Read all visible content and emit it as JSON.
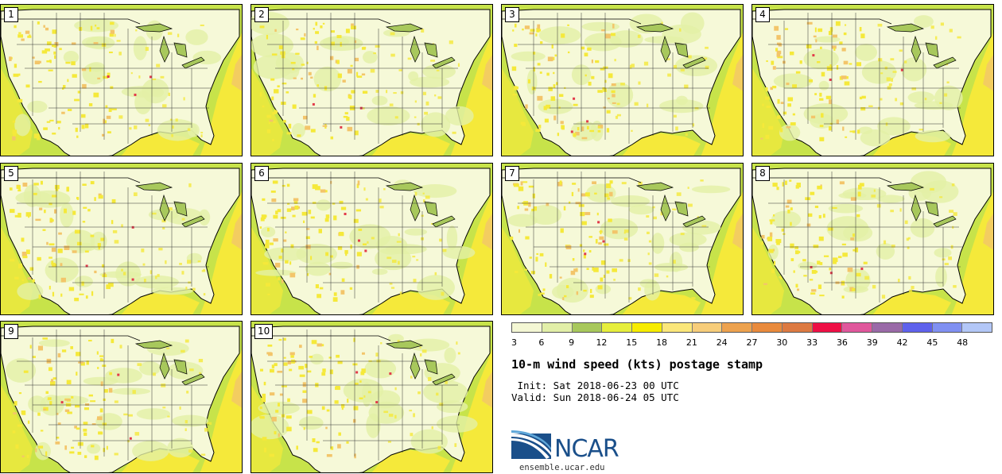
{
  "panels": [
    {
      "label": "1"
    },
    {
      "label": "2"
    },
    {
      "label": "3"
    },
    {
      "label": "4"
    },
    {
      "label": "5"
    },
    {
      "label": "6"
    },
    {
      "label": "7"
    },
    {
      "label": "8"
    },
    {
      "label": "9"
    },
    {
      "label": "10"
    }
  ],
  "colorbar": {
    "tick_labels": [
      "3",
      "6",
      "9",
      "12",
      "15",
      "18",
      "21",
      "24",
      "27",
      "30",
      "33",
      "36",
      "39",
      "42",
      "45",
      "48"
    ],
    "colors": [
      "#f4f7d4",
      "#e2efa8",
      "#a8c85c",
      "#e6ee3c",
      "#f7ec00",
      "#fbe77a",
      "#f7cd7a",
      "#eda24e",
      "#e98a3c",
      "#dd7a42",
      "#ee0f45",
      "#e0579c",
      "#9a6aa8",
      "#5f62ec",
      "#8090f2",
      "#b3c7f7"
    ]
  },
  "map_colors": {
    "ocean": "#c7e34a",
    "land_light": "#f6f9d8",
    "land_green": "#e4f0a6",
    "yellow": "#f5e93a",
    "orange": "#f3c56a",
    "red": "#e23a4a",
    "dark_green": "#a8c85c"
  },
  "title": "10-m wind speed (kts) postage stamp",
  "init": " Init: Sat 2018-06-23 00 UTC",
  "valid": "Valid: Sun 2018-06-24 05 UTC",
  "logo": {
    "text": "NCAR",
    "url_text": "ensemble.ucar.edu"
  }
}
